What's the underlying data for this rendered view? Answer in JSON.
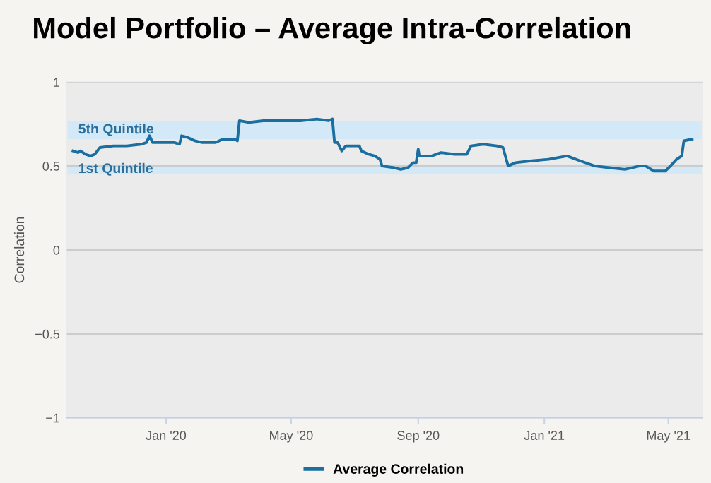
{
  "chart_data": {
    "type": "line",
    "title": "Model Portfolio – Average Intra-Correlation",
    "ylabel": "Correlation",
    "x": [
      "2019-10-03",
      "2019-10-08",
      "2019-10-10",
      "2019-10-15",
      "2019-10-20",
      "2019-10-24",
      "2019-10-29",
      "2019-11-11",
      "2019-11-24",
      "2019-12-08",
      "2019-12-13",
      "2019-12-16",
      "2019-12-19",
      "2019-12-31",
      "2020-01-09",
      "2020-01-14",
      "2020-01-16",
      "2020-01-22",
      "2020-01-29",
      "2020-02-05",
      "2020-02-18",
      "2020-02-25",
      "2020-03-08",
      "2020-03-10",
      "2020-03-12",
      "2020-03-21",
      "2020-04-04",
      "2020-04-22",
      "2020-05-10",
      "2020-05-26",
      "2020-06-06",
      "2020-06-10",
      "2020-06-12",
      "2020-06-15",
      "2020-06-19",
      "2020-06-23",
      "2020-07-06",
      "2020-07-08",
      "2020-07-15",
      "2020-07-21",
      "2020-07-26",
      "2020-07-28",
      "2020-08-09",
      "2020-08-15",
      "2020-08-22",
      "2020-08-27",
      "2020-08-30",
      "2020-09-01",
      "2020-09-02",
      "2020-09-14",
      "2020-09-23",
      "2020-10-06",
      "2020-10-18",
      "2020-10-22",
      "2020-11-03",
      "2020-11-16",
      "2020-11-22",
      "2020-11-27",
      "2020-12-04",
      "2020-12-18",
      "2021-01-05",
      "2021-01-23",
      "2021-02-05",
      "2021-02-19",
      "2021-03-05",
      "2021-03-20",
      "2021-04-03",
      "2021-04-09",
      "2021-04-17",
      "2021-04-28",
      "2021-05-03",
      "2021-05-09",
      "2021-05-14",
      "2021-05-16",
      "2021-05-24"
    ],
    "series": [
      {
        "name": "Average Correlation",
        "color": "#1a6fa0",
        "values": [
          0.59,
          0.58,
          0.59,
          0.57,
          0.56,
          0.57,
          0.61,
          0.62,
          0.62,
          0.63,
          0.64,
          0.68,
          0.64,
          0.64,
          0.64,
          0.63,
          0.68,
          0.67,
          0.65,
          0.64,
          0.64,
          0.66,
          0.66,
          0.65,
          0.77,
          0.76,
          0.77,
          0.77,
          0.77,
          0.78,
          0.77,
          0.78,
          0.64,
          0.64,
          0.59,
          0.62,
          0.62,
          0.59,
          0.57,
          0.56,
          0.54,
          0.5,
          0.49,
          0.48,
          0.49,
          0.52,
          0.52,
          0.6,
          0.56,
          0.56,
          0.58,
          0.57,
          0.57,
          0.62,
          0.63,
          0.62,
          0.61,
          0.5,
          0.52,
          0.53,
          0.54,
          0.56,
          0.53,
          0.5,
          0.49,
          0.48,
          0.5,
          0.5,
          0.47,
          0.47,
          0.5,
          0.54,
          0.56,
          0.65,
          0.66
        ]
      }
    ],
    "xlim": [
      "2019-09-27",
      "2021-06-03"
    ],
    "xticks": [
      {
        "value": "2020-01-01",
        "label": "Jan '20"
      },
      {
        "value": "2020-05-01",
        "label": "May '20"
      },
      {
        "value": "2020-09-01",
        "label": "Sep '20"
      },
      {
        "value": "2021-01-01",
        "label": "Jan '21"
      },
      {
        "value": "2021-05-01",
        "label": "May '21"
      }
    ],
    "ylim": [
      -1,
      1
    ],
    "yticks": [
      {
        "value": -1,
        "label": "−1"
      },
      {
        "value": -0.5,
        "label": "−0.5"
      },
      0,
      0.5,
      1
    ],
    "bands": [
      {
        "axis": "y",
        "from": 0.66,
        "to": 0.77,
        "label": "5th Quintile",
        "color": "#d3e9f7"
      },
      {
        "axis": "y",
        "from": 0.45,
        "to": 0.51,
        "label": "1st Quintile",
        "color": "#d3e9f7"
      }
    ],
    "ref_lines": [
      {
        "axis": "y",
        "value": 0,
        "color": "#444444"
      }
    ],
    "grid": "y",
    "legend": "bottom",
    "marker": "none",
    "line_style": "solid"
  }
}
